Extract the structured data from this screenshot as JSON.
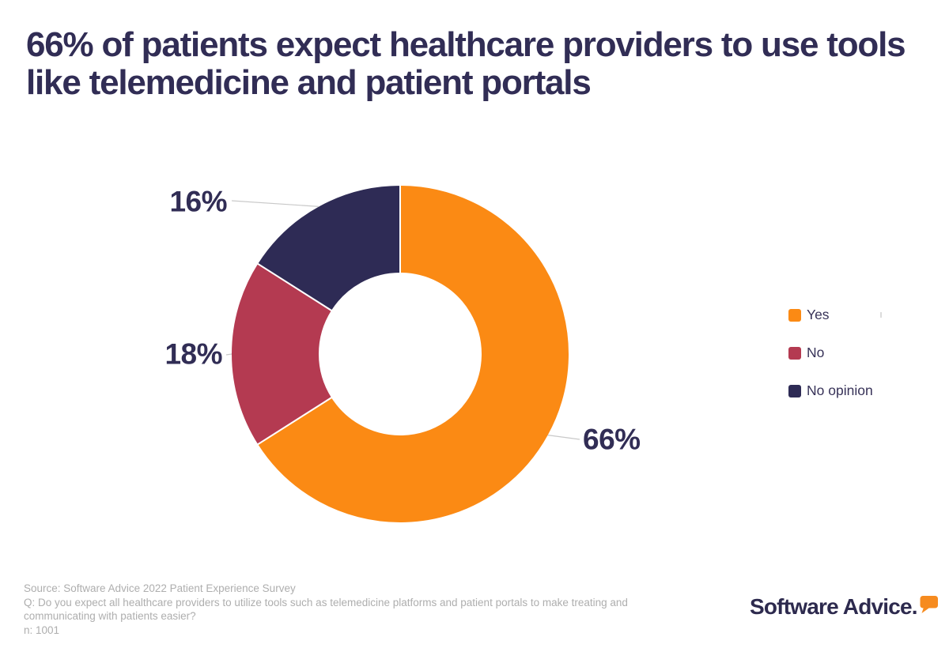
{
  "header": {
    "title": "66% of patients expect healthcare providers to use tools like telemedicine and patient portals"
  },
  "chart_data": {
    "type": "pie",
    "subtype": "donut",
    "title": "66% of patients expect healthcare providers to use tools like telemedicine and patient portals",
    "start_angle_deg": 0,
    "direction": "clockwise",
    "inner_radius_ratio": 0.48,
    "legend_position": "right",
    "unit": "%",
    "segments": [
      {
        "label": "Yes",
        "value": 66,
        "display": "66%",
        "color": "#FB8A14"
      },
      {
        "label": "No",
        "value": 18,
        "display": "18%",
        "color": "#B43A51"
      },
      {
        "label": "No opinion",
        "value": 16,
        "display": "16%",
        "color": "#2E2B55"
      }
    ]
  },
  "footer": {
    "source": "Source: Software Advice 2022 Patient Experience Survey",
    "question": "Q: Do you expect all healthcare providers to utilize tools such as telemedicine platforms and patient portals to make treating and communicating with patients easier?",
    "sample": "n: 1001"
  },
  "branding": {
    "logo_text": "Software Advice."
  },
  "colors": {
    "background": "#FFFFFF",
    "title_text": "#312D55",
    "label_text": "#312D55",
    "legend_text": "#373258",
    "footer_text": "#AEAEAE",
    "leader_line": "#C9C9C9",
    "logo_navy": "#2D2A4E",
    "logo_orange": "#F68B1F"
  }
}
